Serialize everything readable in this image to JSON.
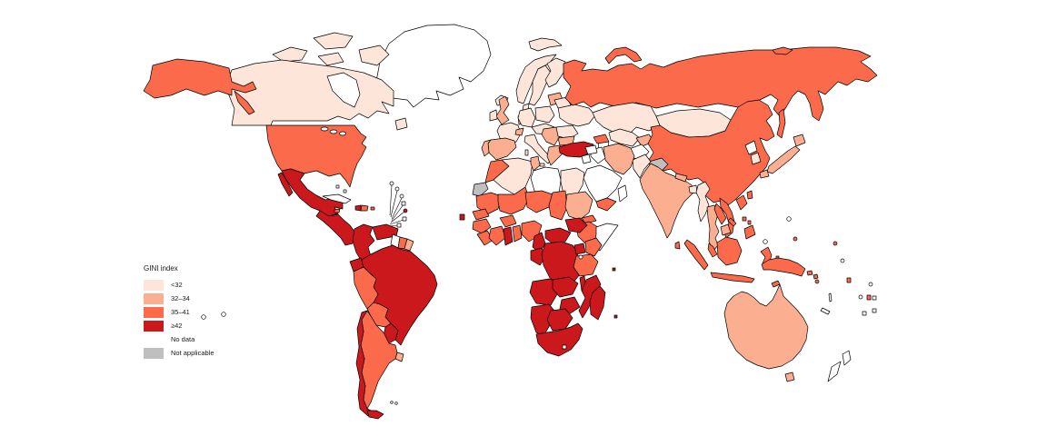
{
  "legend": {
    "title": "GINI index",
    "entries": [
      {
        "key": "lt32",
        "label": "<32",
        "color": "#FEE5D9"
      },
      {
        "key": "v32_34",
        "label": "32–34",
        "color": "#FCAE91"
      },
      {
        "key": "v35_41",
        "label": "35–41",
        "color": "#FB6A4A"
      },
      {
        "key": "ge42",
        "label": "≥42",
        "color": "#CB181D"
      },
      {
        "key": "nodata",
        "label": "No data",
        "color": "#FFFFFF"
      },
      {
        "key": "na",
        "label": "Not applicable",
        "color": "#BFBFBF"
      }
    ]
  },
  "map": {
    "stroke_color": "#000000",
    "default_fill": "#FFFFFF",
    "regions": {
      "greenland": "nodata",
      "iceland": "lt32",
      "canada": "lt32",
      "canada-arctic-1": "lt32",
      "canada-arctic-2": "lt32",
      "canada-arctic-3": "lt32",
      "canada-arctic-4": "lt32",
      "newfoundland": "lt32",
      "alaska": "v35_41",
      "alaska-panhandle": "v35_41",
      "usa": "v35_41",
      "mexico": "ge42",
      "baja": "ge42",
      "central-america": "ge42",
      "cuba": "nodata",
      "bahamas-1": "nodata",
      "bahamas-2": "nodata",
      "jamaica": "v35_41",
      "haiti": "ge42",
      "dominican-republic": "v35_41",
      "puerto-rico": "v35_41",
      "antilles-m1": "nodata",
      "antilles-m2": "nodata",
      "antilles-m3": "nodata",
      "antilles-m4": "nodata",
      "antilles-m5": "ge42",
      "antilles-m6": "nodata",
      "antilles-m7": "nodata",
      "trinidad": "ge42",
      "colombia": "ge42",
      "venezuela": "ge42",
      "guyana": "nodata",
      "suriname": "v35_41",
      "french-guiana": "v32_34",
      "ecuador": "ge42",
      "peru": "v35_41",
      "brazil": "ge42",
      "bolivia": "v35_41",
      "paraguay": "ge42",
      "uruguay": "v32_34",
      "argentina": "v35_41",
      "chile": "ge42",
      "tierra-del-fuego": "ge42",
      "falkland-1": "nodata",
      "falkland-2": "nodata",
      "polynesia-1": "nodata",
      "polynesia-2": "nodata",
      "svalbard": "lt32",
      "norway": "lt32",
      "sweden": "lt32",
      "finland": "lt32",
      "denmark": "lt32",
      "baltics": "v32_34",
      "uk": "v32_34",
      "ireland": "lt32",
      "france": "lt32",
      "benelux": "v32_34",
      "germany": "lt32",
      "poland": "lt32",
      "central-europe": "lt32",
      "switzerland": "v32_34",
      "spain": "v32_34",
      "portugal": "v32_34",
      "italy": "lt32",
      "sicily": "lt32",
      "sardinia": "lt32",
      "balkans": "v32_34",
      "romania": "lt32",
      "bulgaria": "v32_34",
      "greece": "v32_34",
      "ukraine": "lt32",
      "belarus": "lt32",
      "turkey": "ge42",
      "russia": "v35_41",
      "novaya-zemlya": "v35_41",
      "new-siberian": "v35_41",
      "sakhalin": "v35_41",
      "kazakhstan": "lt32",
      "uzbek-turkmen": "lt32",
      "kyrgyz-tajik": "v32_34",
      "caucasus": "v35_41",
      "mongolia": "lt32",
      "china": "v35_41",
      "kashmir": "na",
      "north-korea": "nodata",
      "south-korea": "lt32",
      "hokkaido": "v32_34",
      "honshu": "v32_34",
      "kyushu": "v32_34",
      "taiwan": "v35_41",
      "afghanistan": "nodata",
      "pakistan": "lt32",
      "india": "v32_34",
      "nepal": "v32_34",
      "bangladesh": "lt32",
      "sri-lanka": "v35_41",
      "iran": "v32_34",
      "iraq": "nodata",
      "syria": "nodata",
      "jordan": "nodata",
      "saudi-arabia": "nodata",
      "yemen": "v35_41",
      "oman": "nodata",
      "myanmar": "lt32",
      "thailand": "v32_34",
      "laos": "v35_41",
      "vietnam": "v35_41",
      "cambodia": "v32_34",
      "malaysia": "v35_41",
      "sumatra": "v35_41",
      "java": "v35_41",
      "borneo": "v35_41",
      "sulawesi": "v35_41",
      "moluccas-1": "v35_41",
      "moluccas-2": "v35_41",
      "timor": "v35_41",
      "new-guinea": "v35_41",
      "luzon": "v35_41",
      "visayas-1": "v35_41",
      "visayas-2": "v35_41",
      "palawan": "v35_41",
      "mindanao": "v35_41",
      "australia": "v32_34",
      "tasmania": "v32_34",
      "nz-north": "nodata",
      "nz-south": "nodata",
      "solomon-1": "v35_41",
      "solomon-2": "v35_41",
      "vanuatu": "nodata",
      "new-caledonia": "nodata",
      "fiji": "v35_41",
      "pacific-s1": "v35_41",
      "pacific-s2": "v35_41",
      "pacific-s3": "v35_41",
      "pacific-s4": "v35_41",
      "pacific-w1": "nodata",
      "pacific-w2": "nodata",
      "pacific-w3": "nodata",
      "pacific-w4": "nodata",
      "pacific-w5": "nodata",
      "pacific-w6": "nodata",
      "pacific-w7": "nodata",
      "pacific-w8": "nodata",
      "morocco": "v35_41",
      "western-sahara": "na",
      "algeria": "lt32",
      "tunisia": "v32_34",
      "libya": "nodata",
      "egypt": "lt32",
      "mauritania": "v35_41",
      "mali": "v35_41",
      "senegal": "v35_41",
      "guinea": "v35_41",
      "sierra-leone-liberia": "v35_41",
      "cote-divoire": "v35_41",
      "ghana": "ge42",
      "togo-benin": "v35_41",
      "burkina": "v35_41",
      "niger": "v35_41",
      "nigeria": "v35_41",
      "chad": "v35_41",
      "sudan": "v32_34",
      "eritrea": "v35_41",
      "ethiopia": "v35_41",
      "somalia": "nodata",
      "cameroon": "ge42",
      "car": "ge42",
      "south-sudan": "ge42",
      "gabon-congo": "ge42",
      "drc": "ge42",
      "uganda": "ge42",
      "kenya": "v35_41",
      "tanzania": "v35_41",
      "angola": "ge42",
      "zambia": "ge42",
      "malawi": "ge42",
      "mozambique": "ge42",
      "zimbabwe": "ge42",
      "namibia": "ge42",
      "botswana": "ge42",
      "south-africa": "ge42",
      "lesotho": "nodata",
      "madagascar": "ge42",
      "cape-verde": "ge42",
      "seychelles": "ge42",
      "mauritius": "ge42"
    }
  }
}
